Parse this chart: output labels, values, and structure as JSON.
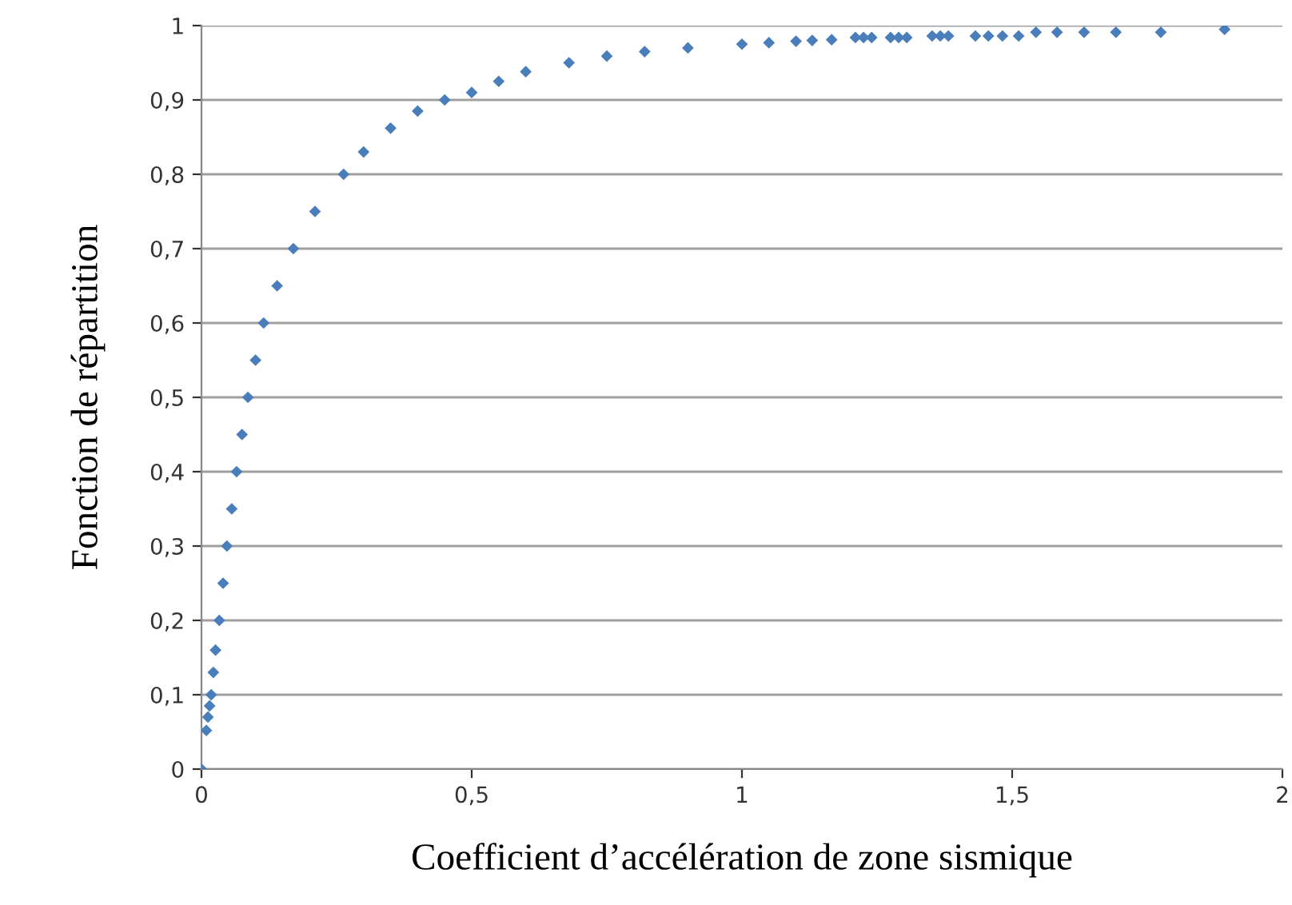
{
  "chart_data": {
    "type": "scatter",
    "xlabel": "Coefficient d’accélération de zone sismique",
    "ylabel": "Fonction de répartition",
    "x": [
      0,
      0.009,
      0.012,
      0.015,
      0.018,
      0.022,
      0.026,
      0.033,
      0.04,
      0.047,
      0.056,
      0.065,
      0.075,
      0.086,
      0.1,
      0.115,
      0.14,
      0.17,
      0.21,
      0.263,
      0.3,
      0.35,
      0.4,
      0.45,
      0.5,
      0.55,
      0.6,
      0.68,
      0.75,
      0.82,
      0.9,
      1.0,
      1.05,
      1.1,
      1.13,
      1.166,
      1.21,
      1.225,
      1.24,
      1.275,
      1.29,
      1.305,
      1.352,
      1.367,
      1.382,
      1.432,
      1.456,
      1.482,
      1.512,
      1.544,
      1.583,
      1.633,
      1.692,
      1.775,
      1.893
    ],
    "series": [
      {
        "color": "#4a7ebb",
        "values": [
          0,
          0.052,
          0.07,
          0.085,
          0.1,
          0.13,
          0.16,
          0.2,
          0.25,
          0.3,
          0.35,
          0.4,
          0.45,
          0.5,
          0.55,
          0.6,
          0.65,
          0.7,
          0.75,
          0.8,
          0.83,
          0.862,
          0.885,
          0.9,
          0.91,
          0.925,
          0.938,
          0.95,
          0.959,
          0.965,
          0.97,
          0.975,
          0.977,
          0.979,
          0.98,
          0.981,
          0.984,
          0.984,
          0.984,
          0.984,
          0.984,
          0.984,
          0.986,
          0.986,
          0.986,
          0.986,
          0.986,
          0.986,
          0.986,
          0.991,
          0.991,
          0.991,
          0.991,
          0.991,
          0.995
        ]
      }
    ],
    "xlim": [
      0,
      2
    ],
    "xticks": [
      0,
      {
        "value": 0.5,
        "label": "0,5"
      },
      1,
      {
        "value": 1.5,
        "label": "1,5"
      },
      2
    ],
    "ylim": [
      0,
      1
    ],
    "yticks": [
      0,
      {
        "value": 0.1,
        "label": "0,1"
      },
      {
        "value": 0.2,
        "label": "0,2"
      },
      {
        "value": 0.3,
        "label": "0,3"
      },
      {
        "value": 0.4,
        "label": "0,4"
      },
      {
        "value": 0.5,
        "label": "0,5"
      },
      {
        "value": 0.6,
        "label": "0,6"
      },
      {
        "value": 0.7,
        "label": "0,7"
      },
      {
        "value": 0.8,
        "label": "0,8"
      },
      {
        "value": 0.9,
        "label": "0,9"
      },
      1
    ],
    "grid": "y",
    "marker": "diamond"
  }
}
